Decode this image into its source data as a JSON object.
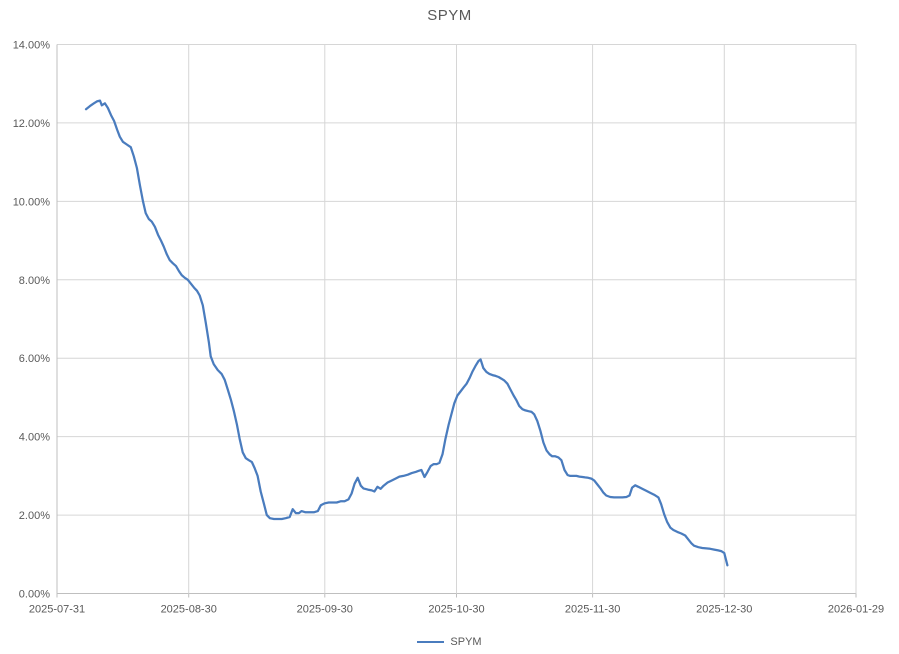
{
  "title": "SPYM",
  "legend": {
    "label": "SPYM"
  },
  "colors": {
    "line": "#4a7cbe",
    "gridline": "#d6d6d6",
    "axis_line": "#bfbfbf",
    "text": "#595959",
    "background": "#ffffff"
  },
  "chart_data": {
    "type": "line",
    "title": "SPYM",
    "xlabel": "",
    "ylabel": "",
    "grid": true,
    "legend_position": "bottom-center",
    "x_unit": "days since 2025-07-31",
    "xlim": [
      0,
      182
    ],
    "ylim": [
      0,
      14
    ],
    "y_ticks": [
      {
        "v": 0,
        "label": "0.00%"
      },
      {
        "v": 2,
        "label": "2.00%"
      },
      {
        "v": 4,
        "label": "4.00%"
      },
      {
        "v": 6,
        "label": "6.00%"
      },
      {
        "v": 8,
        "label": "8.00%"
      },
      {
        "v": 10,
        "label": "10.00%"
      },
      {
        "v": 12,
        "label": "12.00%"
      },
      {
        "v": 14,
        "label": "14.00%"
      }
    ],
    "x_ticks": [
      {
        "v": 0,
        "label": "2025-07-31"
      },
      {
        "v": 30,
        "label": "2025-08-30"
      },
      {
        "v": 61,
        "label": "2025-09-30"
      },
      {
        "v": 91,
        "label": "2025-10-30"
      },
      {
        "v": 122,
        "label": "2025-11-30"
      },
      {
        "v": 152,
        "label": "2025-12-30"
      },
      {
        "v": 182,
        "label": "2026-01-29"
      }
    ],
    "series": [
      {
        "name": "SPYM",
        "unit": "percent",
        "points": [
          [
            6.6,
            12.35
          ],
          [
            7.5,
            12.43
          ],
          [
            8.4,
            12.5
          ],
          [
            9.1,
            12.55
          ],
          [
            9.8,
            12.57
          ],
          [
            10.2,
            12.45
          ],
          [
            10.9,
            12.5
          ],
          [
            11.6,
            12.38
          ],
          [
            12.3,
            12.2
          ],
          [
            13.0,
            12.05
          ],
          [
            13.7,
            11.83
          ],
          [
            14.3,
            11.65
          ],
          [
            15.0,
            11.52
          ],
          [
            15.9,
            11.45
          ],
          [
            16.8,
            11.38
          ],
          [
            17.5,
            11.15
          ],
          [
            18.2,
            10.85
          ],
          [
            18.9,
            10.4
          ],
          [
            19.6,
            10.0
          ],
          [
            20.2,
            9.7
          ],
          [
            20.9,
            9.55
          ],
          [
            21.6,
            9.48
          ],
          [
            22.3,
            9.35
          ],
          [
            23.0,
            9.15
          ],
          [
            23.7,
            9.0
          ],
          [
            24.3,
            8.85
          ],
          [
            25.0,
            8.65
          ],
          [
            25.7,
            8.5
          ],
          [
            26.4,
            8.42
          ],
          [
            27.1,
            8.35
          ],
          [
            27.8,
            8.22
          ],
          [
            28.4,
            8.12
          ],
          [
            29.1,
            8.05
          ],
          [
            29.8,
            8.0
          ],
          [
            30.5,
            7.9
          ],
          [
            31.2,
            7.8
          ],
          [
            31.9,
            7.72
          ],
          [
            32.5,
            7.6
          ],
          [
            33.2,
            7.35
          ],
          [
            33.9,
            6.9
          ],
          [
            34.6,
            6.4
          ],
          [
            35.0,
            6.05
          ],
          [
            35.7,
            5.85
          ],
          [
            36.6,
            5.7
          ],
          [
            37.5,
            5.6
          ],
          [
            38.2,
            5.45
          ],
          [
            38.9,
            5.2
          ],
          [
            39.6,
            4.95
          ],
          [
            40.3,
            4.65
          ],
          [
            41.0,
            4.3
          ],
          [
            41.6,
            3.95
          ],
          [
            42.3,
            3.6
          ],
          [
            43.0,
            3.45
          ],
          [
            43.7,
            3.4
          ],
          [
            44.4,
            3.35
          ],
          [
            45.0,
            3.2
          ],
          [
            45.7,
            3.0
          ],
          [
            46.4,
            2.6
          ],
          [
            47.1,
            2.3
          ],
          [
            47.8,
            2.0
          ],
          [
            48.5,
            1.92
          ],
          [
            49.4,
            1.9
          ],
          [
            50.3,
            1.9
          ],
          [
            51.2,
            1.9
          ],
          [
            52.1,
            1.92
          ],
          [
            53.0,
            1.95
          ],
          [
            53.7,
            2.15
          ],
          [
            54.4,
            2.05
          ],
          [
            55.1,
            2.05
          ],
          [
            55.7,
            2.1
          ],
          [
            56.6,
            2.07
          ],
          [
            57.6,
            2.07
          ],
          [
            58.5,
            2.07
          ],
          [
            59.4,
            2.1
          ],
          [
            60.1,
            2.25
          ],
          [
            61.0,
            2.3
          ],
          [
            61.9,
            2.32
          ],
          [
            62.8,
            2.32
          ],
          [
            63.7,
            2.32
          ],
          [
            64.6,
            2.35
          ],
          [
            65.5,
            2.35
          ],
          [
            66.4,
            2.4
          ],
          [
            67.1,
            2.55
          ],
          [
            67.8,
            2.8
          ],
          [
            68.5,
            2.95
          ],
          [
            69.2,
            2.75
          ],
          [
            69.8,
            2.68
          ],
          [
            70.8,
            2.65
          ],
          [
            71.7,
            2.63
          ],
          [
            72.3,
            2.6
          ],
          [
            73.0,
            2.72
          ],
          [
            73.7,
            2.67
          ],
          [
            74.4,
            2.75
          ],
          [
            75.3,
            2.83
          ],
          [
            76.2,
            2.88
          ],
          [
            77.1,
            2.93
          ],
          [
            78.0,
            2.98
          ],
          [
            78.9,
            3.0
          ],
          [
            79.9,
            3.03
          ],
          [
            80.8,
            3.07
          ],
          [
            81.7,
            3.1
          ],
          [
            82.4,
            3.13
          ],
          [
            83.0,
            3.15
          ],
          [
            83.7,
            2.97
          ],
          [
            84.4,
            3.1
          ],
          [
            85.1,
            3.25
          ],
          [
            85.8,
            3.3
          ],
          [
            86.5,
            3.3
          ],
          [
            87.1,
            3.33
          ],
          [
            87.8,
            3.55
          ],
          [
            88.5,
            3.95
          ],
          [
            89.2,
            4.3
          ],
          [
            89.9,
            4.6
          ],
          [
            90.5,
            4.85
          ],
          [
            91.2,
            5.05
          ],
          [
            91.9,
            5.15
          ],
          [
            92.6,
            5.25
          ],
          [
            93.3,
            5.35
          ],
          [
            94.0,
            5.5
          ],
          [
            94.6,
            5.65
          ],
          [
            95.3,
            5.8
          ],
          [
            96.0,
            5.93
          ],
          [
            96.5,
            5.97
          ],
          [
            97.1,
            5.75
          ],
          [
            97.8,
            5.65
          ],
          [
            98.5,
            5.6
          ],
          [
            99.2,
            5.57
          ],
          [
            99.9,
            5.55
          ],
          [
            100.6,
            5.52
          ],
          [
            101.2,
            5.48
          ],
          [
            101.9,
            5.43
          ],
          [
            102.6,
            5.35
          ],
          [
            103.3,
            5.2
          ],
          [
            104.0,
            5.05
          ],
          [
            104.7,
            4.92
          ],
          [
            105.3,
            4.78
          ],
          [
            106.0,
            4.7
          ],
          [
            106.7,
            4.67
          ],
          [
            107.4,
            4.65
          ],
          [
            108.1,
            4.63
          ],
          [
            108.7,
            4.57
          ],
          [
            109.4,
            4.4
          ],
          [
            110.1,
            4.15
          ],
          [
            110.8,
            3.85
          ],
          [
            111.5,
            3.65
          ],
          [
            112.2,
            3.55
          ],
          [
            112.8,
            3.5
          ],
          [
            113.5,
            3.5
          ],
          [
            114.2,
            3.47
          ],
          [
            114.9,
            3.4
          ],
          [
            115.6,
            3.15
          ],
          [
            116.3,
            3.02
          ],
          [
            116.9,
            3.0
          ],
          [
            117.6,
            3.0
          ],
          [
            118.3,
            3.0
          ],
          [
            119.0,
            2.98
          ],
          [
            119.7,
            2.97
          ],
          [
            120.3,
            2.96
          ],
          [
            121.0,
            2.95
          ],
          [
            121.7,
            2.93
          ],
          [
            122.4,
            2.88
          ],
          [
            123.1,
            2.78
          ],
          [
            123.8,
            2.68
          ],
          [
            124.4,
            2.58
          ],
          [
            125.1,
            2.5
          ],
          [
            126.0,
            2.46
          ],
          [
            126.9,
            2.45
          ],
          [
            127.9,
            2.45
          ],
          [
            128.8,
            2.45
          ],
          [
            129.7,
            2.46
          ],
          [
            130.4,
            2.5
          ],
          [
            131.0,
            2.7
          ],
          [
            131.7,
            2.76
          ],
          [
            132.4,
            2.72
          ],
          [
            133.3,
            2.67
          ],
          [
            134.2,
            2.62
          ],
          [
            135.1,
            2.57
          ],
          [
            136.0,
            2.52
          ],
          [
            137.0,
            2.45
          ],
          [
            137.6,
            2.28
          ],
          [
            138.3,
            2.02
          ],
          [
            139.0,
            1.82
          ],
          [
            139.7,
            1.68
          ],
          [
            140.4,
            1.62
          ],
          [
            141.3,
            1.57
          ],
          [
            142.2,
            1.53
          ],
          [
            143.1,
            1.48
          ],
          [
            143.8,
            1.38
          ],
          [
            144.5,
            1.28
          ],
          [
            145.1,
            1.22
          ],
          [
            146.1,
            1.18
          ],
          [
            147.0,
            1.16
          ],
          [
            147.9,
            1.15
          ],
          [
            148.8,
            1.14
          ],
          [
            149.7,
            1.12
          ],
          [
            150.6,
            1.1
          ],
          [
            151.3,
            1.08
          ],
          [
            152.0,
            1.03
          ],
          [
            152.7,
            0.72
          ]
        ]
      }
    ]
  }
}
